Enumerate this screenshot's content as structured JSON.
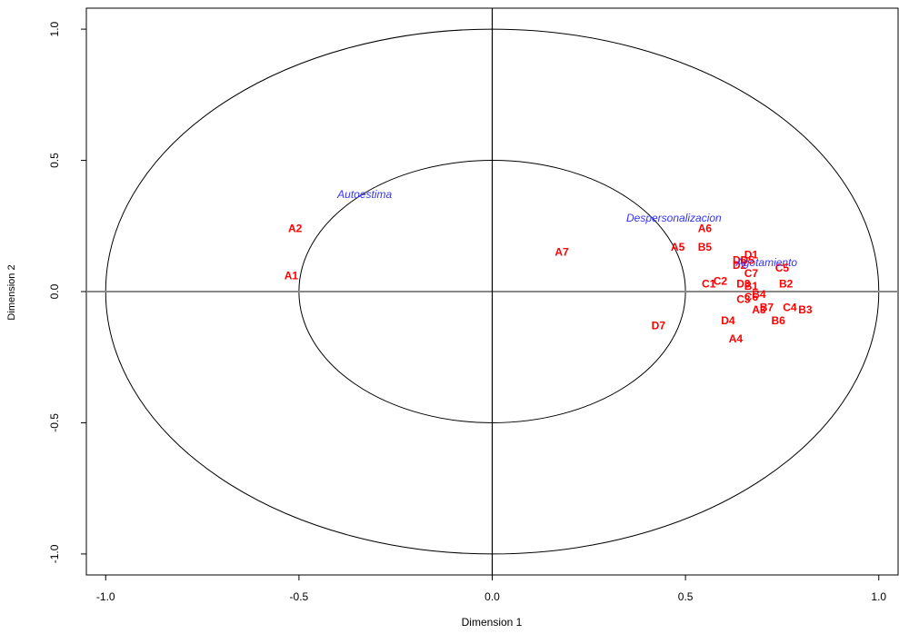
{
  "chart_data": {
    "type": "scatter",
    "xlabel": "Dimension  1",
    "ylabel": "Dimension 2",
    "xlim": [
      -1.05,
      1.05
    ],
    "ylim": [
      -1.08,
      1.08
    ],
    "x_ticks": [
      -1.0,
      -0.5,
      0.0,
      0.5,
      1.0
    ],
    "x_tick_labels": [
      "-1.0",
      "-0.5",
      "0.0",
      "0.5",
      "1.0"
    ],
    "y_ticks": [
      -1.0,
      -0.5,
      0.0,
      0.5,
      1.0
    ],
    "y_tick_labels": [
      "-1.0",
      "-0.5",
      "0.0",
      "0.5",
      "1.0"
    ],
    "grid": false,
    "reference_lines": {
      "x": 0,
      "y": 0
    },
    "circles": [
      {
        "radius": 1.0,
        "color": "#000000"
      },
      {
        "radius": 0.5,
        "color": "#000000"
      }
    ],
    "series": [
      {
        "color": "#ff0000",
        "points": [
          {
            "label": "A1",
            "x": -0.52,
            "y": 0.06
          },
          {
            "label": "A2",
            "x": -0.51,
            "y": 0.24
          },
          {
            "label": "A3",
            "x": 0.69,
            "y": -0.07
          },
          {
            "label": "A4",
            "x": 0.63,
            "y": -0.18
          },
          {
            "label": "A5",
            "x": 0.48,
            "y": 0.17
          },
          {
            "label": "A6",
            "x": 0.55,
            "y": 0.24
          },
          {
            "label": "A7",
            "x": 0.18,
            "y": 0.15
          },
          {
            "label": "B1",
            "x": 0.67,
            "y": 0.02
          },
          {
            "label": "B2",
            "x": 0.76,
            "y": 0.03
          },
          {
            "label": "B3",
            "x": 0.81,
            "y": -0.07
          },
          {
            "label": "B4",
            "x": 0.69,
            "y": -0.01
          },
          {
            "label": "B5",
            "x": 0.55,
            "y": 0.17
          },
          {
            "label": "B6",
            "x": 0.74,
            "y": -0.11
          },
          {
            "label": "B7",
            "x": 0.71,
            "y": -0.06
          },
          {
            "label": "C1",
            "x": 0.56,
            "y": 0.03
          },
          {
            "label": "C2",
            "x": 0.59,
            "y": 0.04
          },
          {
            "label": "C3",
            "x": 0.65,
            "y": -0.03
          },
          {
            "label": "C4",
            "x": 0.77,
            "y": -0.06
          },
          {
            "label": "C5",
            "x": 0.75,
            "y": 0.09
          },
          {
            "label": "C6",
            "x": 0.67,
            "y": -0.02
          },
          {
            "label": "C7",
            "x": 0.67,
            "y": 0.07
          },
          {
            "label": "D1",
            "x": 0.67,
            "y": 0.14
          },
          {
            "label": "D2",
            "x": 0.64,
            "y": 0.1
          },
          {
            "label": "D3",
            "x": 0.65,
            "y": 0.03
          },
          {
            "label": "D4",
            "x": 0.61,
            "y": -0.11
          },
          {
            "label": "D5",
            "x": 0.66,
            "y": 0.12
          },
          {
            "label": "D6",
            "x": 0.64,
            "y": 0.12
          },
          {
            "label": "D7",
            "x": 0.43,
            "y": -0.13
          }
        ]
      },
      {
        "color": "#3333ff",
        "points": [
          {
            "label": "Autoestima",
            "x": -0.33,
            "y": 0.37
          },
          {
            "label": "Despersonalizacion",
            "x": 0.47,
            "y": 0.28
          },
          {
            "label": "Agotamiento",
            "x": 0.71,
            "y": 0.11
          }
        ]
      }
    ]
  }
}
